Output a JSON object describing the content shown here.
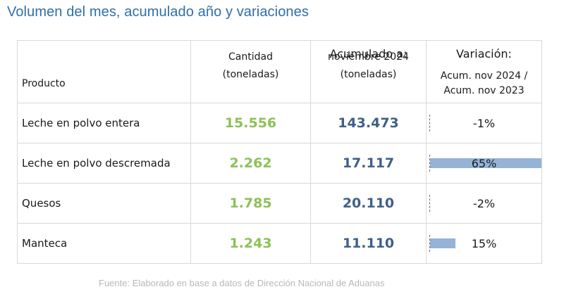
{
  "title": "Volumen del mes, acumulado año y variaciones",
  "header": {
    "producto": "Producto",
    "cantidad": "Cantidad",
    "cantidad_unit": "(toneladas)",
    "acumulado_title": "Acumulado a:",
    "acumulado_period": "noviembre 2024",
    "acumulado_unit": "(toneladas)",
    "variacion_title": "Variación:",
    "variacion_line1": "Acum. nov 2024 /",
    "variacion_line2": "Acum. nov 2023"
  },
  "rows": [
    {
      "producto": "Leche en polvo entera",
      "cantidad": "15.556",
      "acumulado": "143.473",
      "variacion": "-1%",
      "variacion_value": -0.01
    },
    {
      "producto": "Leche en polvo descremada",
      "cantidad": "2.262",
      "acumulado": "17.117",
      "variacion": "65%",
      "variacion_value": 0.65
    },
    {
      "producto": "Quesos",
      "cantidad": "1.785",
      "acumulado": "20.110",
      "variacion": "-2%",
      "variacion_value": -0.02
    },
    {
      "producto": "Manteca",
      "cantidad": "1.243",
      "acumulado": "11.110",
      "variacion": "15%",
      "variacion_value": 0.15
    }
  ],
  "source": "Fuente: Elaborado en base a datos de Dirección Nacional de Aduanas",
  "colors": {
    "title": "#2f6fa8",
    "cantidad": "#8dc157",
    "acumulado": "#3f5f8a",
    "bar": "#95b3d7",
    "source": "#b8b8b8"
  }
}
